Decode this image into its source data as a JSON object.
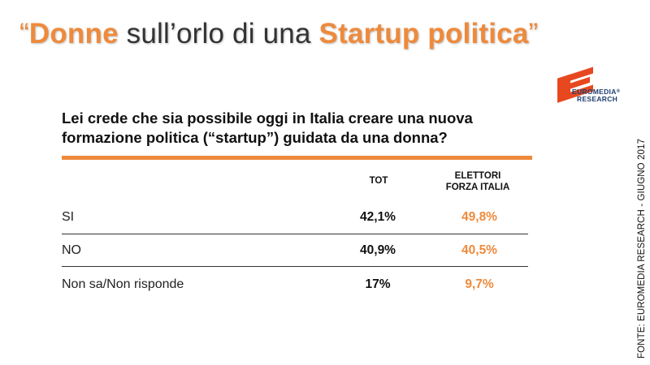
{
  "title": {
    "open_quote": "“",
    "word1": "Donne",
    "middle": " sull’orlo di una ",
    "word2": "Startup politica",
    "close_quote": "”"
  },
  "logo": {
    "line1": "EUROMEDIA",
    "line2": "RESEARCH",
    "registered": "®"
  },
  "question": "Lei crede che sia possibile oggi in Italia creare una nuova formazione politica (“startup”) guidata da una donna?",
  "table": {
    "headers": {
      "tot": "TOT",
      "fi_line1": "ELETTORI",
      "fi_line2": "FORZA ITALIA"
    },
    "rows": [
      {
        "label": "SI",
        "tot": "42,1%",
        "fi": "49,8%"
      },
      {
        "label": "NO",
        "tot": "40,9%",
        "fi": "40,5%"
      },
      {
        "label": "Non sa/Non risponde",
        "tot": "17%",
        "fi": "9,7%"
      }
    ]
  },
  "source": "FONTE: EUROMEDIA RESEARCH - GIUGNO 2017",
  "colors": {
    "accent": "#ee8a3c",
    "logo_red": "#e8481f",
    "logo_blue": "#1f3e70",
    "text": "#111111"
  }
}
